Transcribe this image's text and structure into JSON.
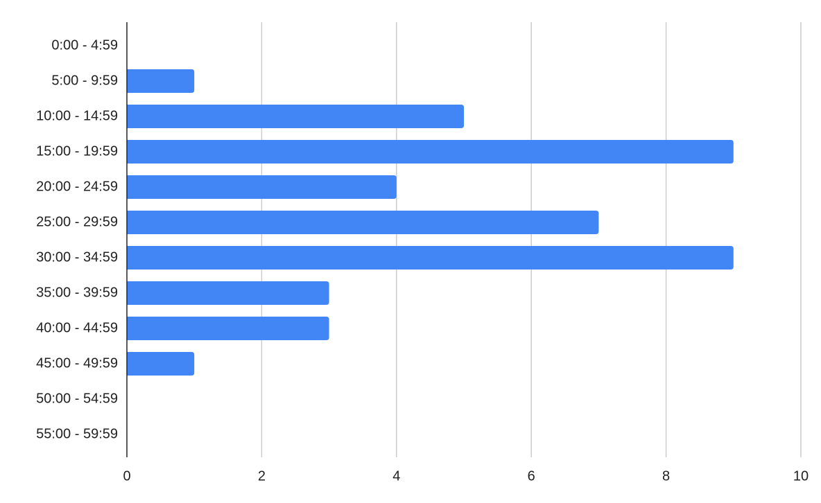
{
  "chart_data": {
    "type": "bar",
    "categories": [
      "0:00 - 4:59",
      "5:00 - 9:59",
      "10:00 - 14:59",
      "15:00 - 19:59",
      "20:00 - 24:59",
      "25:00 - 29:59",
      "30:00 - 34:59",
      "35:00 - 39:59",
      "40:00 - 44:59",
      "45:00 - 49:59",
      "50:00 - 54:59",
      "55:00 - 59:59"
    ],
    "values": [
      0,
      1,
      5,
      9,
      4,
      7,
      9,
      3,
      3,
      1,
      0,
      0
    ],
    "color": "#4285f4",
    "xlim": [
      0,
      10
    ],
    "xticks": [
      0,
      2,
      4,
      6,
      8,
      10
    ],
    "grid": true
  }
}
